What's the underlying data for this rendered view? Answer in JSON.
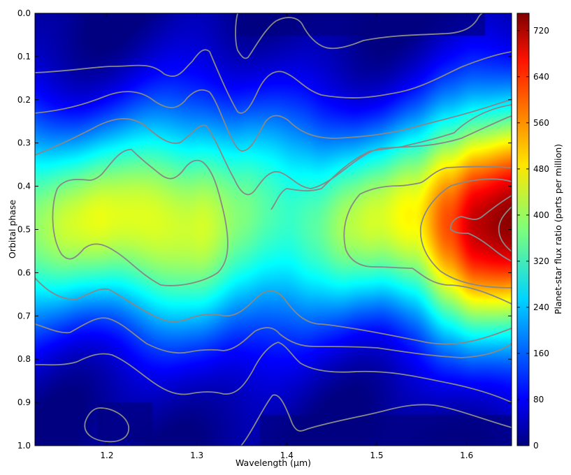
{
  "chart_data": {
    "type": "heatmap",
    "xlabel": "Wavelength (μm)",
    "ylabel": "Orbital phase",
    "colorbar_label": "Planet-star flux ratio (parts per million)",
    "xlim": [
      1.12,
      1.65
    ],
    "ylim": [
      0.0,
      1.0
    ],
    "y_inverted": true,
    "colormap": "jet",
    "clim": [
      0,
      750
    ],
    "x_ticks": [
      1.2,
      1.3,
      1.4,
      1.5,
      1.6
    ],
    "x_tick_labels": [
      "1.2",
      "1.3",
      "1.4",
      "1.5",
      "1.6"
    ],
    "y_ticks": [
      0.0,
      0.1,
      0.2,
      0.3,
      0.4,
      0.5,
      0.6,
      0.7,
      0.8,
      0.9,
      1.0
    ],
    "y_tick_labels": [
      "0.0",
      "0.1",
      "0.2",
      "0.3",
      "0.4",
      "0.5",
      "0.6",
      "0.7",
      "0.8",
      "0.9",
      "1.0"
    ],
    "colorbar_ticks": [
      0,
      80,
      160,
      240,
      320,
      400,
      480,
      560,
      640,
      720
    ],
    "colorbar_tick_labels": [
      "0",
      "80",
      "160",
      "240",
      "320",
      "400",
      "480",
      "560",
      "640",
      "720"
    ],
    "contour_color": "#888888",
    "grid": false,
    "wavelength_samples": [
      1.12,
      1.16,
      1.2,
      1.25,
      1.3,
      1.35,
      1.38,
      1.4,
      1.43,
      1.47,
      1.5,
      1.54,
      1.58,
      1.61,
      1.65
    ],
    "peak_ppm_by_wavelength": [
      400,
      420,
      440,
      465,
      430,
      360,
      345,
      340,
      360,
      400,
      420,
      480,
      620,
      700,
      720
    ],
    "phase_of_peak": 0.48,
    "dark_regions": [
      {
        "x": [
          1.34,
          1.62
        ],
        "phase": [
          0.0,
          0.05
        ]
      },
      {
        "x": [
          1.37,
          1.65
        ],
        "phase": [
          0.93,
          1.0
        ]
      },
      {
        "x": [
          1.19,
          1.25
        ],
        "phase": [
          0.9,
          0.99
        ]
      }
    ]
  }
}
